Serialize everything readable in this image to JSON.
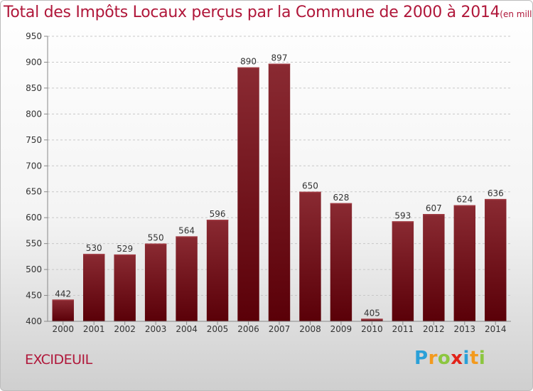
{
  "title": "Total des Impôts Locaux perçus par la Commune de 2000 à 2014",
  "unit": "(en milliers d'€)",
  "commune": "EXCIDEUIL",
  "logo": {
    "letters": [
      "P",
      "r",
      "o",
      "x",
      "i",
      "t",
      "i"
    ],
    "colors": [
      "#2aa0d8",
      "#f39a1e",
      "#8cc63f",
      "#e2231a",
      "#2aa0d8",
      "#f39a1e",
      "#8cc63f"
    ]
  },
  "colors": {
    "bar_top": "#8a2a32",
    "bar_bottom": "#5a0008",
    "title": "#b0173a"
  },
  "chart_data": {
    "type": "bar",
    "categories": [
      "2000",
      "2001",
      "2002",
      "2003",
      "2004",
      "2005",
      "2006",
      "2007",
      "2008",
      "2009",
      "2010",
      "2011",
      "2012",
      "2013",
      "2014"
    ],
    "values": [
      442,
      530,
      529,
      550,
      564,
      596,
      890,
      897,
      650,
      628,
      405,
      593,
      607,
      624,
      636
    ],
    "ylim": [
      400,
      950
    ],
    "yticks": [
      400,
      450,
      500,
      550,
      600,
      650,
      700,
      750,
      800,
      850,
      900,
      950
    ],
    "grid": true,
    "data_labels": true
  }
}
